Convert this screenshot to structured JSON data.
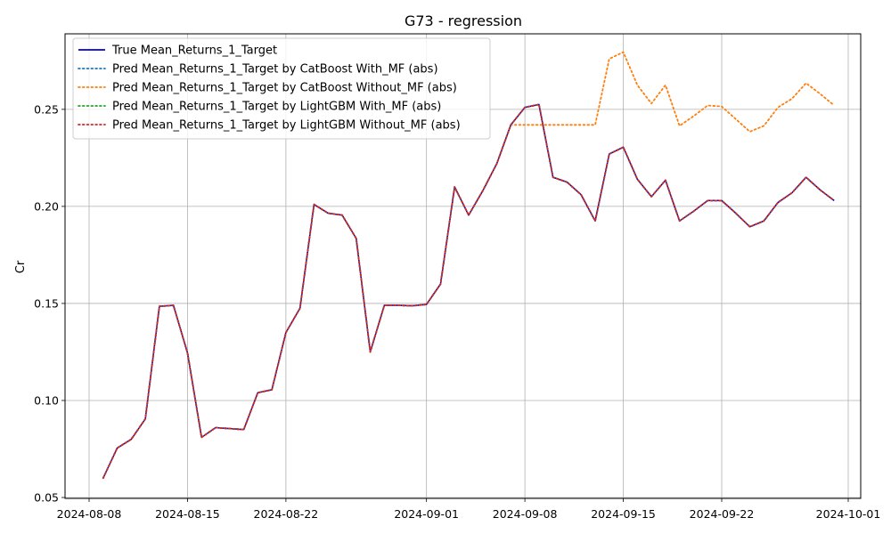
{
  "chart_data": {
    "type": "line",
    "title": "G73 - regression",
    "xlabel": "",
    "ylabel": "Cr",
    "x_dates": [
      "2024-08-09",
      "2024-08-10",
      "2024-08-11",
      "2024-08-12",
      "2024-08-13",
      "2024-08-14",
      "2024-08-15",
      "2024-08-16",
      "2024-08-17",
      "2024-08-18",
      "2024-08-19",
      "2024-08-20",
      "2024-08-21",
      "2024-08-22",
      "2024-08-23",
      "2024-08-24",
      "2024-08-25",
      "2024-08-26",
      "2024-08-27",
      "2024-08-28",
      "2024-08-29",
      "2024-08-30",
      "2024-08-31",
      "2024-09-01",
      "2024-09-02",
      "2024-09-03",
      "2024-09-04",
      "2024-09-05",
      "2024-09-06",
      "2024-09-07",
      "2024-09-08",
      "2024-09-09",
      "2024-09-10",
      "2024-09-11",
      "2024-09-12",
      "2024-09-13",
      "2024-09-14",
      "2024-09-15",
      "2024-09-16",
      "2024-09-17",
      "2024-09-18",
      "2024-09-19",
      "2024-09-20",
      "2024-09-21",
      "2024-09-22",
      "2024-09-23",
      "2024-09-24",
      "2024-09-25",
      "2024-09-26",
      "2024-09-27",
      "2024-09-28",
      "2024-09-29",
      "2024-09-30"
    ],
    "series": [
      {
        "name": "True Mean_Returns_1_Target",
        "color": "#0000cc",
        "style": "solid",
        "values": [
          0.06,
          0.0755,
          0.08,
          0.0905,
          0.1485,
          0.149,
          0.1245,
          0.081,
          0.086,
          0.0855,
          0.085,
          0.104,
          0.1055,
          0.135,
          0.1475,
          0.201,
          0.1965,
          0.1955,
          0.1835,
          0.125,
          0.149,
          0.149,
          0.1488,
          0.1495,
          0.16,
          0.21,
          0.1955,
          0.208,
          0.222,
          0.242,
          0.251,
          0.2525,
          0.215,
          0.2125,
          0.206,
          0.1925,
          0.227,
          0.2305,
          0.214,
          0.205,
          0.2135,
          0.1925,
          0.1975,
          0.203,
          0.203,
          0.1965,
          0.1895,
          0.1925,
          0.202,
          0.207,
          0.215,
          0.2085,
          0.203
        ]
      },
      {
        "name": "Pred Mean_Returns_1_Target by CatBoost With_MF (abs)",
        "color": "#1f77b4",
        "style": "dotted",
        "values": [
          0.06,
          0.0755,
          0.08,
          0.0905,
          0.1485,
          0.149,
          0.1245,
          0.081,
          0.086,
          0.0855,
          0.085,
          0.104,
          0.1055,
          0.135,
          0.1475,
          0.201,
          0.1965,
          0.1955,
          0.1835,
          0.125,
          0.149,
          0.149,
          0.1488,
          0.1495,
          0.16,
          0.21,
          0.1955,
          0.208,
          0.222,
          0.242,
          0.251,
          0.2525,
          0.215,
          0.2125,
          0.206,
          0.1925,
          0.227,
          0.2305,
          0.214,
          0.205,
          0.2135,
          0.1925,
          0.1975,
          0.203,
          0.203,
          0.1965,
          0.1895,
          0.1925,
          0.202,
          0.207,
          0.215,
          0.2085,
          0.203
        ]
      },
      {
        "name": "Pred Mean_Returns_1_Target by CatBoost Without_MF (abs)",
        "color": "#ff7f0e",
        "style": "dotted",
        "values": [
          0.06,
          0.0755,
          0.08,
          0.0905,
          0.1485,
          0.149,
          0.1245,
          0.081,
          0.086,
          0.0855,
          0.085,
          0.104,
          0.1055,
          0.135,
          0.1475,
          0.201,
          0.1965,
          0.1955,
          0.1835,
          0.125,
          0.149,
          0.149,
          0.1488,
          0.1495,
          0.16,
          0.21,
          0.1955,
          0.208,
          0.222,
          0.242,
          0.242,
          0.242,
          0.242,
          0.242,
          0.242,
          0.242,
          0.276,
          0.2795,
          0.2625,
          0.253,
          0.2625,
          0.2415,
          0.2465,
          0.252,
          0.2515,
          0.245,
          0.2385,
          0.2415,
          0.251,
          0.2555,
          0.2635,
          0.258,
          0.252
        ]
      },
      {
        "name": "Pred Mean_Returns_1_Target by LightGBM With_MF (abs)",
        "color": "#2ca02c",
        "style": "dotted",
        "values": [
          0.06,
          0.0755,
          0.08,
          0.0905,
          0.1485,
          0.149,
          0.1245,
          0.081,
          0.086,
          0.0855,
          0.085,
          0.104,
          0.1055,
          0.135,
          0.1475,
          0.201,
          0.1965,
          0.1955,
          0.1835,
          0.125,
          0.149,
          0.149,
          0.1488,
          0.1495,
          0.16,
          0.21,
          0.1955,
          0.208,
          0.222,
          0.242,
          0.251,
          0.2525,
          0.215,
          0.2125,
          0.206,
          0.1925,
          0.227,
          0.2305,
          0.214,
          0.205,
          0.2135,
          0.1925,
          0.1975,
          0.203,
          0.203,
          0.1965,
          0.1895,
          0.1925,
          0.202,
          0.207,
          0.215,
          0.2085,
          0.203
        ]
      },
      {
        "name": "Pred Mean_Returns_1_Target by LightGBM Without_MF (abs)",
        "color": "#d62728",
        "style": "dotted",
        "values": [
          0.06,
          0.0755,
          0.08,
          0.0905,
          0.1485,
          0.149,
          0.1245,
          0.081,
          0.086,
          0.0855,
          0.085,
          0.104,
          0.1055,
          0.135,
          0.1475,
          0.201,
          0.1965,
          0.1955,
          0.1835,
          0.125,
          0.149,
          0.149,
          0.1488,
          0.1495,
          0.16,
          0.21,
          0.1955,
          0.208,
          0.222,
          0.242,
          0.251,
          0.2525,
          0.215,
          0.2125,
          0.206,
          0.1925,
          0.227,
          0.2305,
          0.214,
          0.205,
          0.2135,
          0.1925,
          0.1975,
          0.203,
          0.203,
          0.1965,
          0.1895,
          0.1925,
          0.202,
          0.207,
          0.215,
          0.2085,
          0.203
        ]
      }
    ],
    "x_ticks": [
      {
        "date": "2024-08-08",
        "label": "2024-08-08"
      },
      {
        "date": "2024-08-15",
        "label": "2024-08-15"
      },
      {
        "date": "2024-08-22",
        "label": "2024-08-22"
      },
      {
        "date": "2024-09-01",
        "label": "2024-09-01"
      },
      {
        "date": "2024-09-08",
        "label": "2024-09-08"
      },
      {
        "date": "2024-09-15",
        "label": "2024-09-15"
      },
      {
        "date": "2024-09-22",
        "label": "2024-09-22"
      },
      {
        "date": "2024-10-01",
        "label": "2024-10-01"
      }
    ],
    "y_ticks": [
      {
        "value": 0.05,
        "label": "0.05"
      },
      {
        "value": 0.1,
        "label": "0.10"
      },
      {
        "value": 0.15,
        "label": "0.15"
      },
      {
        "value": 0.2,
        "label": "0.20"
      },
      {
        "value": 0.25,
        "label": "0.25"
      }
    ],
    "xlim": [
      "2024-08-08",
      "2024-10-01"
    ],
    "ylim": [
      0.05,
      0.288
    ],
    "grid": true,
    "legend_position": "upper-left"
  }
}
